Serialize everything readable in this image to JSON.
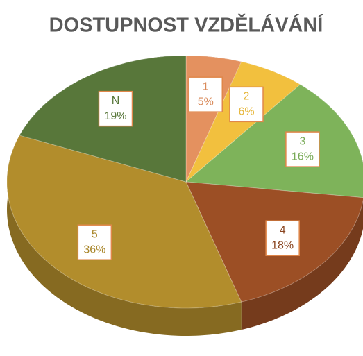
{
  "chart_data": {
    "type": "pie",
    "title": "DOSTUPNOST VZDĚLÁVÁNÍ",
    "categories": [
      "1",
      "2",
      "3",
      "4",
      "5",
      "N"
    ],
    "values": [
      5,
      6,
      16,
      18,
      36,
      19
    ],
    "value_labels": [
      "5%",
      "6%",
      "16%",
      "18%",
      "36%",
      "19%"
    ],
    "colors": [
      "#e4915f",
      "#f2c03e",
      "#7eb35a",
      "#9c4f25",
      "#b28d2c",
      "#58773a"
    ]
  }
}
